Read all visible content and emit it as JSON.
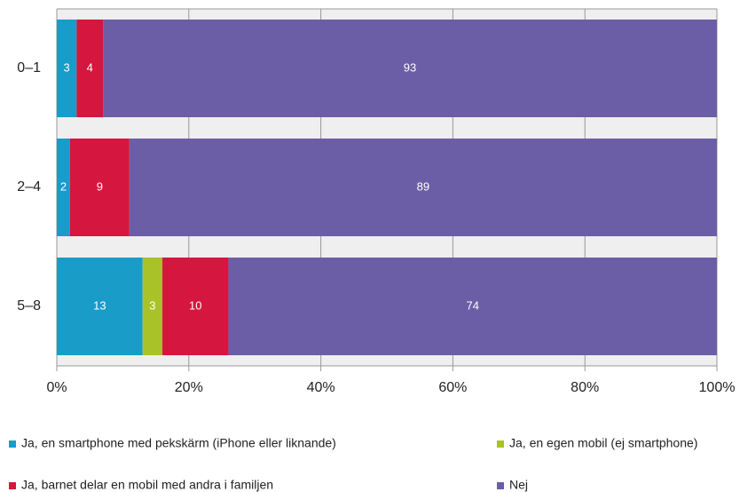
{
  "chart_data": {
    "type": "stacked-bar-horizontal",
    "categories": [
      "0–1",
      "2–4",
      "5–8"
    ],
    "series": [
      {
        "name": "Ja, en smartphone med pekskärm (iPhone eller liknande)",
        "color": "#1a9cc8",
        "values": [
          3,
          2,
          13
        ]
      },
      {
        "name": "Ja, en egen mobil (ej smartphone)",
        "color": "#a8c228",
        "values": [
          null,
          null,
          3
        ]
      },
      {
        "name": "Ja, barnet delar en mobil med andra i familjen",
        "color": "#d5163e",
        "values": [
          4,
          9,
          10
        ]
      },
      {
        "name": "Nej",
        "color": "#6c5ea6",
        "values": [
          93,
          89,
          74
        ]
      }
    ],
    "xlim": [
      0,
      100
    ],
    "xticks": [
      {
        "value": 0,
        "label": "0%"
      },
      {
        "value": 20,
        "label": "20%"
      },
      {
        "value": 40,
        "label": "40%"
      },
      {
        "value": 60,
        "label": "60%"
      },
      {
        "value": 80,
        "label": "80%"
      },
      {
        "value": 100,
        "label": "100%"
      }
    ],
    "grid": true
  }
}
